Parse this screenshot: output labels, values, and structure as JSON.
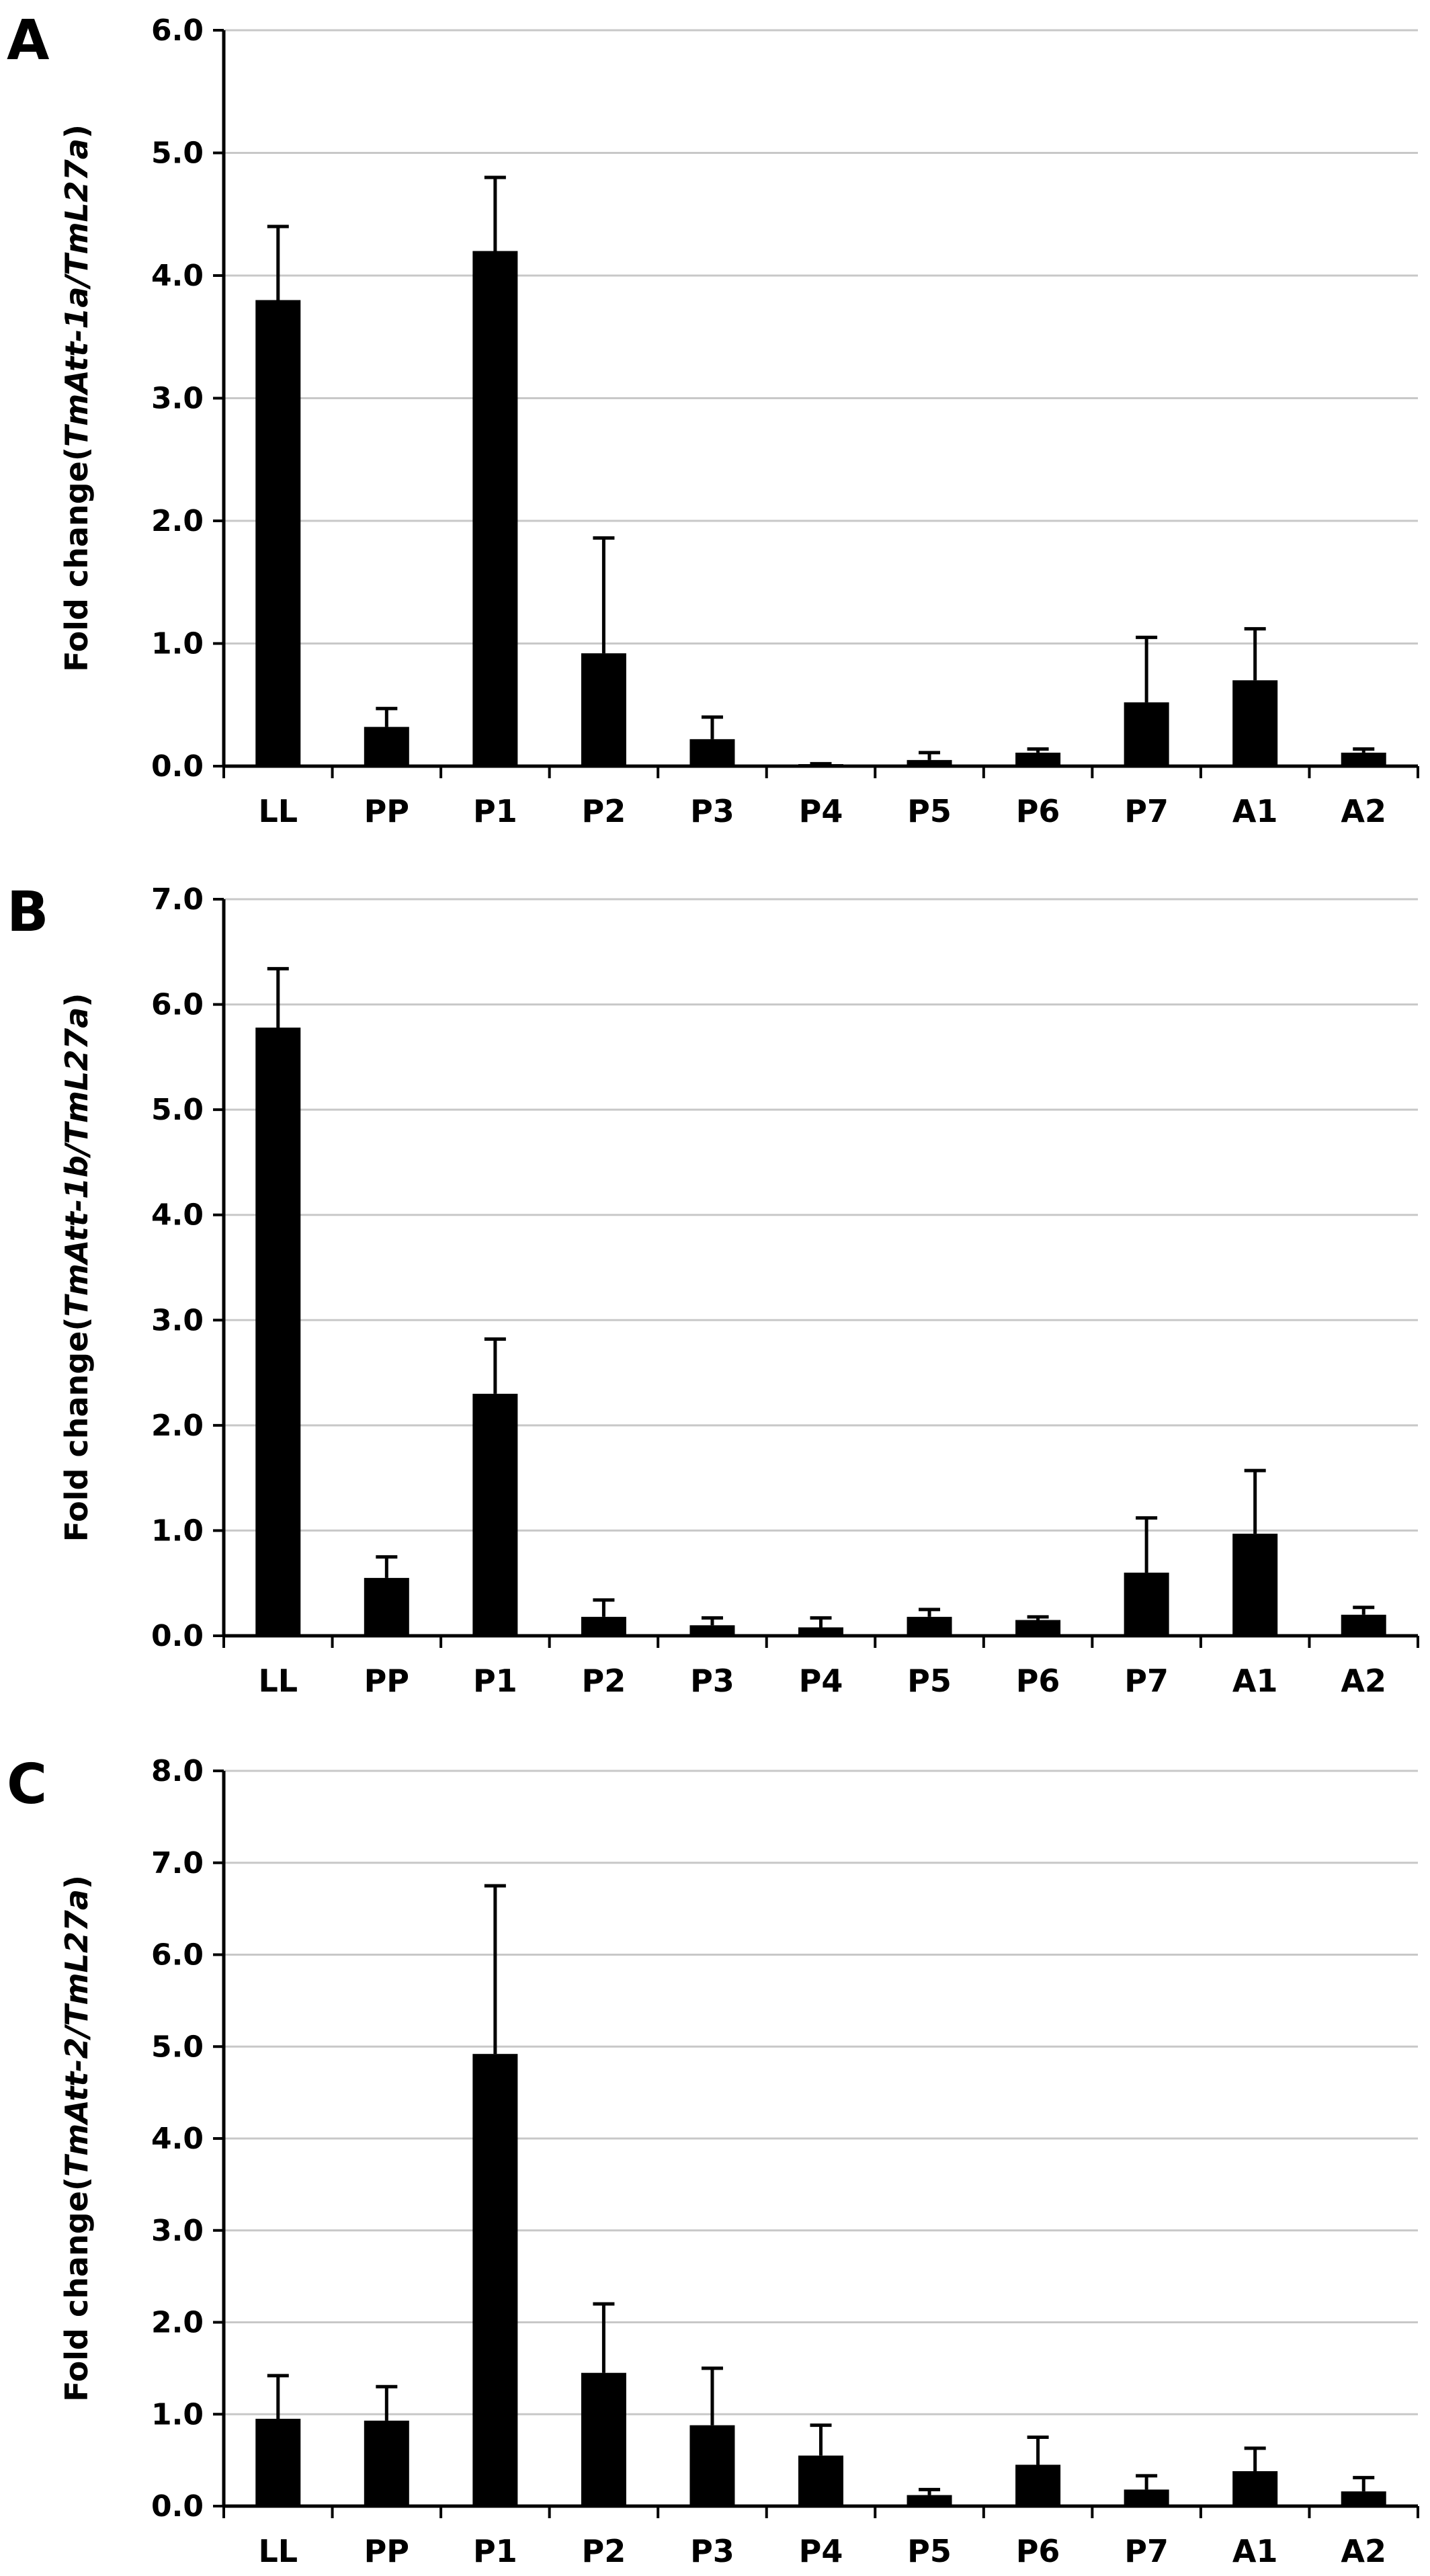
{
  "chart_data": [
    {
      "panel": "A",
      "type": "bar",
      "ylabel": {
        "prefix": "Fold change(",
        "gene": "TmAtt-1a/TmL27a",
        "suffix": ")"
      },
      "categories": [
        "LL",
        "PP",
        "P1",
        "P2",
        "P3",
        "P4",
        "P5",
        "P6",
        "P7",
        "A1",
        "A2"
      ],
      "values": [
        3.8,
        0.32,
        4.2,
        0.92,
        0.22,
        0.01,
        0.05,
        0.11,
        0.52,
        0.7,
        0.11
      ],
      "errors": [
        0.6,
        0.15,
        0.6,
        0.94,
        0.18,
        0.01,
        0.06,
        0.03,
        0.53,
        0.42,
        0.03
      ],
      "ylim": [
        0,
        6
      ],
      "yticks": [
        "0.0",
        "1.0",
        "2.0",
        "3.0",
        "4.0",
        "5.0",
        "6.0"
      ],
      "grid": true
    },
    {
      "panel": "B",
      "type": "bar",
      "ylabel": {
        "prefix": "Fold change(",
        "gene": "TmAtt-1b/TmL27a",
        "suffix": ")"
      },
      "categories": [
        "LL",
        "PP",
        "P1",
        "P2",
        "P3",
        "P4",
        "P5",
        "P6",
        "P7",
        "A1",
        "A2"
      ],
      "values": [
        5.78,
        0.55,
        2.3,
        0.18,
        0.1,
        0.08,
        0.18,
        0.15,
        0.6,
        0.97,
        0.2
      ],
      "errors": [
        0.56,
        0.2,
        0.52,
        0.16,
        0.07,
        0.09,
        0.07,
        0.03,
        0.52,
        0.6,
        0.07
      ],
      "ylim": [
        0,
        7
      ],
      "yticks": [
        "0.0",
        "1.0",
        "2.0",
        "3.0",
        "4.0",
        "5.0",
        "6.0",
        "7.0"
      ],
      "grid": true
    },
    {
      "panel": "C",
      "type": "bar",
      "ylabel": {
        "prefix": "Fold change(",
        "gene": "TmAtt-2/TmL27a",
        "suffix": ")"
      },
      "categories": [
        "LL",
        "PP",
        "P1",
        "P2",
        "P3",
        "P4",
        "P5",
        "P6",
        "P7",
        "A1",
        "A2"
      ],
      "values": [
        0.95,
        0.93,
        4.92,
        1.45,
        0.88,
        0.55,
        0.12,
        0.45,
        0.18,
        0.38,
        0.16
      ],
      "errors": [
        0.47,
        0.37,
        1.83,
        0.75,
        0.62,
        0.33,
        0.06,
        0.3,
        0.15,
        0.25,
        0.15
      ],
      "ylim": [
        0,
        8
      ],
      "yticks": [
        "0.0",
        "1.0",
        "2.0",
        "3.0",
        "4.0",
        "5.0",
        "6.0",
        "7.0",
        "8.0"
      ],
      "grid": true
    }
  ]
}
